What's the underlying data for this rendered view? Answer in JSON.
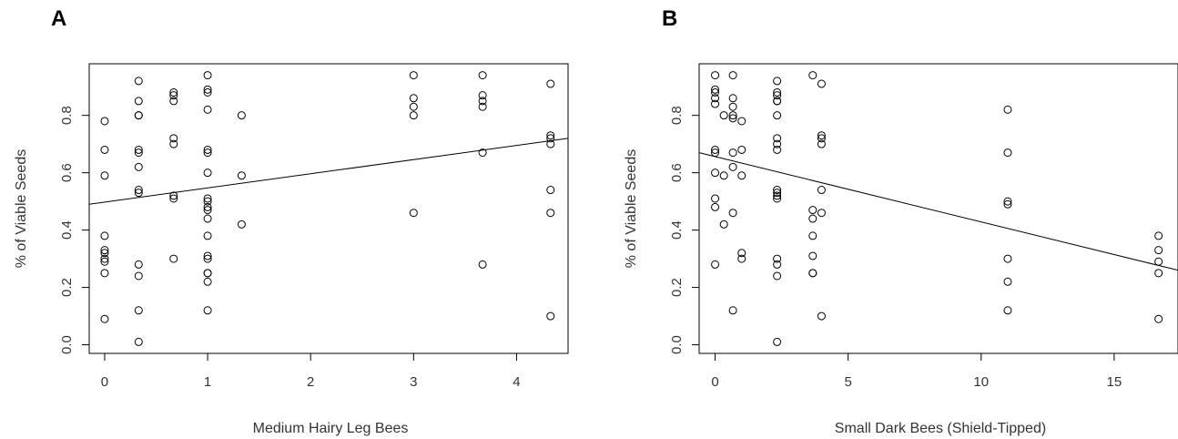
{
  "chart_data": [
    {
      "type": "scatter",
      "panel": "A",
      "xlabel": "Medium Hairy Leg Bees",
      "ylabel": "% of Viable Seeds",
      "xlim": [
        -0.15,
        4.5
      ],
      "ylim": [
        -0.03,
        0.98
      ],
      "xticks": [
        0,
        1,
        2,
        3,
        4
      ],
      "yticks": [
        0.0,
        0.2,
        0.4,
        0.6,
        0.8
      ],
      "ytick_labels": [
        "0.0",
        "0.2",
        "0.4",
        "0.6",
        "0.8"
      ],
      "grid": false,
      "points": [
        [
          0,
          0.78
        ],
        [
          0,
          0.68
        ],
        [
          0,
          0.59
        ],
        [
          0,
          0.38
        ],
        [
          0,
          0.33
        ],
        [
          0,
          0.32
        ],
        [
          0,
          0.3
        ],
        [
          0,
          0.29
        ],
        [
          0,
          0.25
        ],
        [
          0,
          0.09
        ],
        [
          0.33,
          0.92
        ],
        [
          0.33,
          0.85
        ],
        [
          0.33,
          0.8
        ],
        [
          0.33,
          0.8
        ],
        [
          0.33,
          0.68
        ],
        [
          0.33,
          0.67
        ],
        [
          0.33,
          0.62
        ],
        [
          0.33,
          0.54
        ],
        [
          0.33,
          0.53
        ],
        [
          0.33,
          0.28
        ],
        [
          0.33,
          0.24
        ],
        [
          0.33,
          0.12
        ],
        [
          0.33,
          0.01
        ],
        [
          0.67,
          0.88
        ],
        [
          0.67,
          0.87
        ],
        [
          0.67,
          0.85
        ],
        [
          0.67,
          0.72
        ],
        [
          0.67,
          0.7
        ],
        [
          0.67,
          0.52
        ],
        [
          0.67,
          0.51
        ],
        [
          0.67,
          0.3
        ],
        [
          1,
          0.94
        ],
        [
          1,
          0.89
        ],
        [
          1,
          0.88
        ],
        [
          1,
          0.82
        ],
        [
          1,
          0.68
        ],
        [
          1,
          0.67
        ],
        [
          1,
          0.6
        ],
        [
          1,
          0.51
        ],
        [
          1,
          0.5
        ],
        [
          1,
          0.48
        ],
        [
          1,
          0.47
        ],
        [
          1,
          0.44
        ],
        [
          1,
          0.38
        ],
        [
          1,
          0.31
        ],
        [
          1,
          0.3
        ],
        [
          1,
          0.25
        ],
        [
          1,
          0.25
        ],
        [
          1,
          0.22
        ],
        [
          1,
          0.12
        ],
        [
          1.33,
          0.8
        ],
        [
          1.33,
          0.59
        ],
        [
          1.33,
          0.42
        ],
        [
          3,
          0.94
        ],
        [
          3,
          0.86
        ],
        [
          3,
          0.83
        ],
        [
          3,
          0.8
        ],
        [
          3,
          0.46
        ],
        [
          3.67,
          0.94
        ],
        [
          3.67,
          0.87
        ],
        [
          3.67,
          0.85
        ],
        [
          3.67,
          0.83
        ],
        [
          3.67,
          0.67
        ],
        [
          3.67,
          0.28
        ],
        [
          4.33,
          0.91
        ],
        [
          4.33,
          0.73
        ],
        [
          4.33,
          0.72
        ],
        [
          4.33,
          0.7
        ],
        [
          4.33,
          0.54
        ],
        [
          4.33,
          0.46
        ],
        [
          4.33,
          0.1
        ]
      ],
      "fit_line": {
        "x": [
          -0.15,
          4.5
        ],
        "y": [
          0.49,
          0.72
        ]
      }
    },
    {
      "type": "scatter",
      "panel": "B",
      "xlabel": "Small Dark Bees (Shield-Tipped)",
      "ylabel": "% of Viable Seeds",
      "xlim": [
        -0.6,
        17.4
      ],
      "ylim": [
        -0.03,
        0.98
      ],
      "xticks": [
        0,
        5,
        10,
        15
      ],
      "yticks": [
        0.0,
        0.2,
        0.4,
        0.6,
        0.8
      ],
      "ytick_labels": [
        "0.0",
        "0.2",
        "0.4",
        "0.6",
        "0.8"
      ],
      "grid": false,
      "points": [
        [
          0,
          0.94
        ],
        [
          0,
          0.89
        ],
        [
          0,
          0.88
        ],
        [
          0,
          0.86
        ],
        [
          0,
          0.84
        ],
        [
          0,
          0.68
        ],
        [
          0,
          0.67
        ],
        [
          0,
          0.6
        ],
        [
          0,
          0.51
        ],
        [
          0,
          0.48
        ],
        [
          0,
          0.28
        ],
        [
          0.33,
          0.8
        ],
        [
          0.33,
          0.59
        ],
        [
          0.33,
          0.42
        ],
        [
          0.67,
          0.94
        ],
        [
          0.67,
          0.86
        ],
        [
          0.67,
          0.83
        ],
        [
          0.67,
          0.8
        ],
        [
          0.67,
          0.79
        ],
        [
          0.67,
          0.67
        ],
        [
          0.67,
          0.62
        ],
        [
          0.67,
          0.46
        ],
        [
          0.67,
          0.12
        ],
        [
          1,
          0.78
        ],
        [
          1,
          0.68
        ],
        [
          1,
          0.59
        ],
        [
          1,
          0.32
        ],
        [
          1,
          0.3
        ],
        [
          2.33,
          0.92
        ],
        [
          2.33,
          0.88
        ],
        [
          2.33,
          0.87
        ],
        [
          2.33,
          0.85
        ],
        [
          2.33,
          0.85
        ],
        [
          2.33,
          0.8
        ],
        [
          2.33,
          0.72
        ],
        [
          2.33,
          0.7
        ],
        [
          2.33,
          0.68
        ],
        [
          2.33,
          0.54
        ],
        [
          2.33,
          0.53
        ],
        [
          2.33,
          0.52
        ],
        [
          2.33,
          0.51
        ],
        [
          2.33,
          0.3
        ],
        [
          2.33,
          0.28
        ],
        [
          2.33,
          0.24
        ],
        [
          2.33,
          0.01
        ],
        [
          3.67,
          0.94
        ],
        [
          3.67,
          0.47
        ],
        [
          3.67,
          0.44
        ],
        [
          3.67,
          0.38
        ],
        [
          3.67,
          0.31
        ],
        [
          3.67,
          0.25
        ],
        [
          3.67,
          0.25
        ],
        [
          4,
          0.91
        ],
        [
          4,
          0.73
        ],
        [
          4,
          0.72
        ],
        [
          4,
          0.7
        ],
        [
          4,
          0.54
        ],
        [
          4,
          0.46
        ],
        [
          4,
          0.1
        ],
        [
          11,
          0.82
        ],
        [
          11,
          0.67
        ],
        [
          11,
          0.5
        ],
        [
          11,
          0.49
        ],
        [
          11,
          0.3
        ],
        [
          11,
          0.22
        ],
        [
          11,
          0.12
        ],
        [
          16.67,
          0.38
        ],
        [
          16.67,
          0.33
        ],
        [
          16.67,
          0.29
        ],
        [
          16.67,
          0.25
        ],
        [
          16.67,
          0.09
        ]
      ],
      "fit_line": {
        "x": [
          -0.6,
          17.4
        ],
        "y": [
          0.67,
          0.26
        ]
      }
    }
  ]
}
